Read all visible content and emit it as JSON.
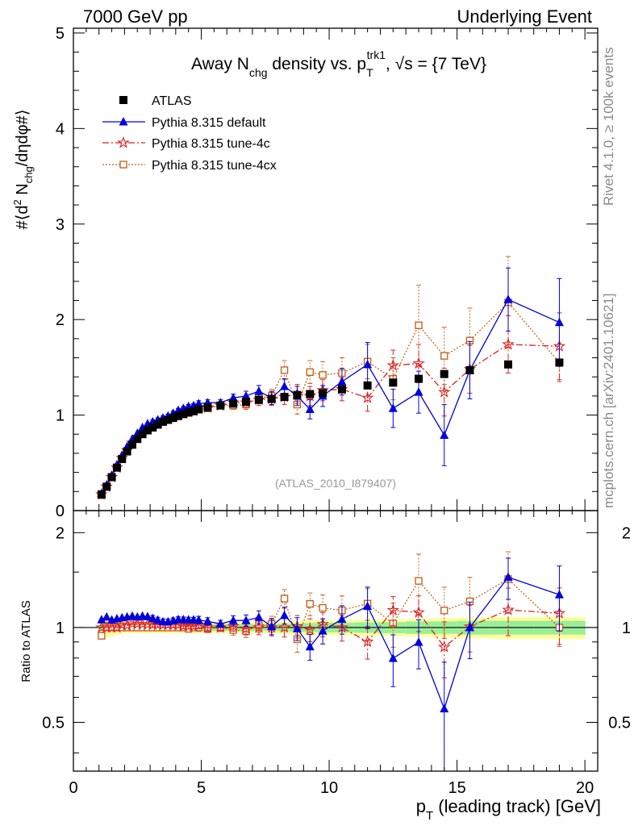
{
  "header": {
    "left": "7000 GeV pp",
    "right": "Underlying Event",
    "side_top": "Rivet 4.1.0, ≥ 100k events",
    "side_bottom": "mcplots.cern.ch [arXiv:2401.10621]",
    "analysis_id": "(ATLAS_2010_I879407)"
  },
  "chart_data": {
    "type": "scatter",
    "title": "Away N_chg density vs. p_T^trk1, √s = {7 TeV}",
    "title_parts": {
      "pre": "Away N",
      "sub1": "chg",
      "mid": " density vs. p",
      "sub2": "T",
      "sup2": "trk1",
      "post": ", √s = {7 TeV}"
    },
    "xlabel": "p_T (leading track) [GeV]",
    "xlabel_parts": {
      "p": "p",
      "sub": "T",
      "rest": " (leading track) [GeV]"
    },
    "ylabel": "#⟨d² N_chg/dηdφ#⟩",
    "ylabel_parts": {
      "a": "#⟨d",
      "sup": "2",
      "b": " N",
      "sub": "chg",
      "c": "/dηdφ#⟩"
    },
    "ratio_ylabel": "Ratio to ATLAS",
    "xlim": [
      0,
      20.5
    ],
    "ylim": [
      0,
      5.05
    ],
    "ratio_ylim": [
      0.35,
      2.35
    ],
    "xticks": [
      "0",
      "5",
      "10",
      "15",
      "20"
    ],
    "yticks": [
      "0",
      "1",
      "2",
      "3",
      "4",
      "5"
    ],
    "ratio_yticks": [
      "0.5",
      "1",
      "2"
    ],
    "x": [
      1.1,
      1.3,
      1.5,
      1.7,
      1.9,
      2.1,
      2.3,
      2.5,
      2.7,
      2.9,
      3.1,
      3.3,
      3.5,
      3.7,
      3.9,
      4.1,
      4.3,
      4.5,
      4.7,
      4.9,
      5.25,
      5.75,
      6.25,
      6.75,
      7.25,
      7.75,
      8.25,
      8.75,
      9.25,
      9.75,
      10.5,
      11.5,
      12.5,
      13.5,
      14.5,
      15.5,
      17.0,
      19.0
    ],
    "bands": {
      "green_halfwidth": [
        0.025,
        0.025,
        0.025,
        0.025,
        0.025,
        0.025,
        0.025,
        0.025,
        0.025,
        0.025,
        0.025,
        0.025,
        0.025,
        0.025,
        0.025,
        0.025,
        0.025,
        0.025,
        0.025,
        0.025,
        0.025,
        0.025,
        0.025,
        0.025,
        0.025,
        0.025,
        0.028,
        0.03,
        0.033,
        0.035,
        0.035,
        0.038,
        0.04,
        0.045,
        0.045,
        0.05,
        0.05,
        0.05
      ],
      "yellow_halfwidth": [
        0.08,
        0.07,
        0.06,
        0.05,
        0.045,
        0.04,
        0.04,
        0.04,
        0.04,
        0.04,
        0.04,
        0.04,
        0.04,
        0.04,
        0.04,
        0.04,
        0.04,
        0.04,
        0.04,
        0.04,
        0.04,
        0.04,
        0.04,
        0.04,
        0.04,
        0.04,
        0.045,
        0.05,
        0.055,
        0.055,
        0.055,
        0.06,
        0.06,
        0.065,
        0.07,
        0.075,
        0.08,
        0.08
      ]
    },
    "series": [
      {
        "name": "ATLAS",
        "color": "#000000",
        "marker": "square",
        "line": "none",
        "values": [
          0.17,
          0.25,
          0.35,
          0.45,
          0.54,
          0.62,
          0.69,
          0.75,
          0.8,
          0.84,
          0.87,
          0.9,
          0.93,
          0.95,
          0.97,
          0.99,
          1.01,
          1.03,
          1.04,
          1.06,
          1.08,
          1.1,
          1.12,
          1.14,
          1.16,
          1.17,
          1.19,
          1.21,
          1.22,
          1.23,
          1.27,
          1.31,
          1.34,
          1.38,
          1.43,
          1.47,
          1.53,
          1.55
        ],
        "errors": [
          0.005,
          0.005,
          0.005,
          0.005,
          0.005,
          0.005,
          0.005,
          0.005,
          0.005,
          0.005,
          0.005,
          0.005,
          0.005,
          0.005,
          0.005,
          0.005,
          0.005,
          0.005,
          0.005,
          0.005,
          0.005,
          0.005,
          0.005,
          0.005,
          0.005,
          0.005,
          0.005,
          0.005,
          0.005,
          0.005,
          0.005,
          0.005,
          0.005,
          0.005,
          0.005,
          0.005,
          0.005,
          0.005
        ]
      },
      {
        "name": "Pythia 8.315 default",
        "color": "#0000dd",
        "marker": "triangle",
        "line": "solid",
        "values": [
          0.18,
          0.27,
          0.37,
          0.48,
          0.58,
          0.67,
          0.75,
          0.81,
          0.87,
          0.91,
          0.93,
          0.95,
          0.97,
          0.99,
          1.02,
          1.05,
          1.07,
          1.09,
          1.1,
          1.12,
          1.13,
          1.13,
          1.18,
          1.2,
          1.25,
          1.18,
          1.3,
          1.2,
          1.06,
          1.2,
          1.35,
          1.53,
          1.07,
          1.24,
          0.79,
          1.47,
          2.21,
          1.97
        ],
        "errors": [
          0.01,
          0.01,
          0.01,
          0.01,
          0.01,
          0.01,
          0.01,
          0.01,
          0.01,
          0.01,
          0.02,
          0.02,
          0.02,
          0.02,
          0.02,
          0.02,
          0.02,
          0.02,
          0.02,
          0.03,
          0.03,
          0.03,
          0.04,
          0.05,
          0.06,
          0.07,
          0.08,
          0.1,
          0.1,
          0.11,
          0.14,
          0.23,
          0.2,
          0.22,
          0.32,
          0.3,
          0.33,
          0.46
        ]
      },
      {
        "name": "Pythia 8.315 tune-4c",
        "color": "#dd2222",
        "marker": "star",
        "line": "dashdot",
        "values": [
          0.17,
          0.25,
          0.35,
          0.45,
          0.55,
          0.63,
          0.71,
          0.77,
          0.82,
          0.86,
          0.89,
          0.92,
          0.95,
          0.97,
          0.99,
          1.01,
          1.02,
          1.04,
          1.05,
          1.08,
          1.08,
          1.1,
          1.13,
          1.13,
          1.16,
          1.17,
          1.19,
          1.22,
          1.2,
          1.26,
          1.27,
          1.18,
          1.52,
          1.54,
          1.24,
          1.48,
          1.74,
          1.72
        ],
        "errors": [
          0.01,
          0.01,
          0.01,
          0.01,
          0.01,
          0.01,
          0.01,
          0.01,
          0.01,
          0.01,
          0.02,
          0.02,
          0.02,
          0.02,
          0.02,
          0.02,
          0.02,
          0.02,
          0.02,
          0.03,
          0.03,
          0.03,
          0.04,
          0.05,
          0.06,
          0.07,
          0.08,
          0.1,
          0.1,
          0.11,
          0.12,
          0.14,
          0.16,
          0.2,
          0.25,
          0.25,
          0.3,
          0.35
        ]
      },
      {
        "name": "Pythia 8.315 tune-4cx",
        "color": "#c8641e",
        "marker": "open-square",
        "line": "dotted",
        "values": [
          0.16,
          0.25,
          0.35,
          0.45,
          0.54,
          0.62,
          0.69,
          0.75,
          0.8,
          0.84,
          0.87,
          0.9,
          0.93,
          0.95,
          0.97,
          0.99,
          1.01,
          1.02,
          1.04,
          1.06,
          1.07,
          1.1,
          1.1,
          1.11,
          1.18,
          1.2,
          1.47,
          1.11,
          1.45,
          1.42,
          1.44,
          1.56,
          1.38,
          1.94,
          1.62,
          1.78,
          2.18,
          1.55
        ],
        "errors": [
          0.01,
          0.01,
          0.01,
          0.01,
          0.01,
          0.01,
          0.01,
          0.01,
          0.01,
          0.01,
          0.02,
          0.02,
          0.02,
          0.02,
          0.02,
          0.02,
          0.02,
          0.02,
          0.02,
          0.03,
          0.03,
          0.03,
          0.04,
          0.05,
          0.06,
          0.07,
          0.1,
          0.1,
          0.12,
          0.14,
          0.16,
          0.18,
          0.22,
          0.42,
          0.3,
          0.34,
          0.48,
          0.2
        ]
      }
    ]
  }
}
